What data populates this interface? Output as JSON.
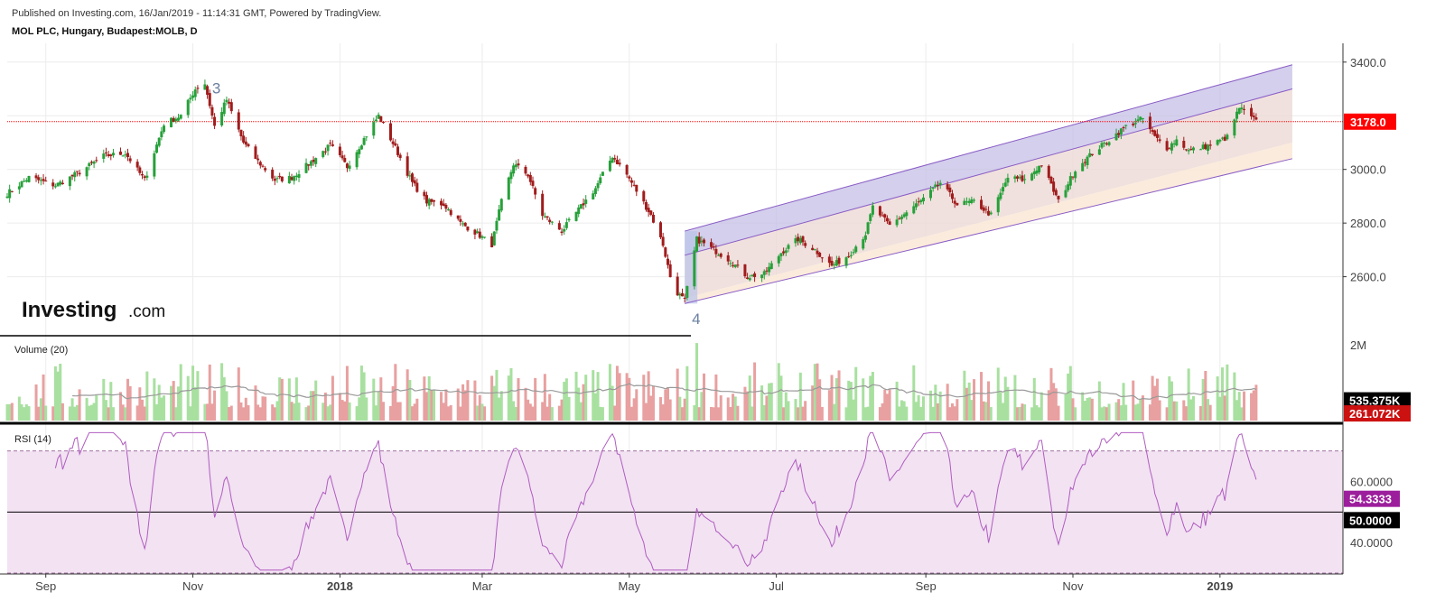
{
  "header": {
    "published": "Published on Investing.com, 16/Jan/2019 - 11:14:31 GMT, Powered by TradingView.",
    "symbol": "MOL PLC, Hungary, Budapest:MOLB, D"
  },
  "logo": {
    "main": "Investing",
    "suffix": ".com"
  },
  "colors": {
    "up": "#27a03a",
    "down": "#a01c1c",
    "vol_up": "#a8e0a0",
    "vol_down": "#e8a0a0",
    "rsi": "#b05cc0",
    "last_price": "#ff0000",
    "channel_upper_fill": "#c4bfe6",
    "channel_mid_fill": "#ecd9d6",
    "channel_lower_fill": "#fbe9d8",
    "rsi_band_fill": "#f2e2f2",
    "rsi_value_bg": "#9c1e9c"
  },
  "chart_data": {
    "type": "candlestick",
    "price_axis": {
      "ticks": [
        "3400.0",
        "3000.0",
        "2800.0",
        "2600.0"
      ],
      "range": [
        2380,
        3470
      ]
    },
    "last_price_label": "3178.0",
    "last_price": 3178.0,
    "wave_labels": [
      {
        "text": "3",
        "date": "2017-11-06",
        "price": 3330
      },
      {
        "text": "4",
        "date": "2018-05-24",
        "price": 2470
      }
    ],
    "x_axis": {
      "labels": [
        {
          "text": "Sep",
          "date": "2017-09-01",
          "bold": false
        },
        {
          "text": "Nov",
          "date": "2017-11-01",
          "bold": false
        },
        {
          "text": "2018",
          "date": "2018-01-01",
          "bold": true
        },
        {
          "text": "Mar",
          "date": "2018-03-01",
          "bold": false
        },
        {
          "text": "May",
          "date": "2018-05-01",
          "bold": false
        },
        {
          "text": "Jul",
          "date": "2018-07-01",
          "bold": false
        },
        {
          "text": "Sep",
          "date": "2018-09-01",
          "bold": false
        },
        {
          "text": "Nov",
          "date": "2018-11-01",
          "bold": false
        },
        {
          "text": "2019",
          "date": "2019-01-01",
          "bold": true
        }
      ]
    },
    "price_close": [
      [
        "2017-08-16",
        2910
      ],
      [
        "2017-08-25",
        2970
      ],
      [
        "2017-09-05",
        2940
      ],
      [
        "2017-09-15",
        2990
      ],
      [
        "2017-09-25",
        3050
      ],
      [
        "2017-10-04",
        3060
      ],
      [
        "2017-10-12",
        2960
      ],
      [
        "2017-10-20",
        3170
      ],
      [
        "2017-10-27",
        3200
      ],
      [
        "2017-11-02",
        3300
      ],
      [
        "2017-11-06",
        3320
      ],
      [
        "2017-11-10",
        3160
      ],
      [
        "2017-11-15",
        3260
      ],
      [
        "2017-11-22",
        3100
      ],
      [
        "2017-11-28",
        3030
      ],
      [
        "2017-12-05",
        2960
      ],
      [
        "2017-12-12",
        2970
      ],
      [
        "2017-12-19",
        3020
      ],
      [
        "2017-12-28",
        3090
      ],
      [
        "2018-01-04",
        3010
      ],
      [
        "2018-01-10",
        3100
      ],
      [
        "2018-01-17",
        3200
      ],
      [
        "2018-01-24",
        3080
      ],
      [
        "2018-01-31",
        2950
      ],
      [
        "2018-02-06",
        2880
      ],
      [
        "2018-02-13",
        2870
      ],
      [
        "2018-02-20",
        2800
      ],
      [
        "2018-02-27",
        2760
      ],
      [
        "2018-03-05",
        2720
      ],
      [
        "2018-03-09",
        2880
      ],
      [
        "2018-03-14",
        3020
      ],
      [
        "2018-03-20",
        2980
      ],
      [
        "2018-03-26",
        2830
      ],
      [
        "2018-04-03",
        2770
      ],
      [
        "2018-04-10",
        2850
      ],
      [
        "2018-04-17",
        2930
      ],
      [
        "2018-04-24",
        3050
      ],
      [
        "2018-04-30",
        2980
      ],
      [
        "2018-05-04",
        2920
      ],
      [
        "2018-05-10",
        2830
      ],
      [
        "2018-05-15",
        2720
      ],
      [
        "2018-05-19",
        2560
      ],
      [
        "2018-05-24",
        2510
      ],
      [
        "2018-05-29",
        2740
      ],
      [
        "2018-06-05",
        2700
      ],
      [
        "2018-06-12",
        2660
      ],
      [
        "2018-06-19",
        2600
      ],
      [
        "2018-06-26",
        2610
      ],
      [
        "2018-07-03",
        2690
      ],
      [
        "2018-07-10",
        2740
      ],
      [
        "2018-07-17",
        2700
      ],
      [
        "2018-07-24",
        2640
      ],
      [
        "2018-07-31",
        2680
      ],
      [
        "2018-08-07",
        2760
      ],
      [
        "2018-08-10",
        2860
      ],
      [
        "2018-08-17",
        2790
      ],
      [
        "2018-08-24",
        2840
      ],
      [
        "2018-08-31",
        2890
      ],
      [
        "2018-09-07",
        2950
      ],
      [
        "2018-09-14",
        2870
      ],
      [
        "2018-09-21",
        2880
      ],
      [
        "2018-09-28",
        2830
      ],
      [
        "2018-10-05",
        2970
      ],
      [
        "2018-10-12",
        2960
      ],
      [
        "2018-10-19",
        3020
      ],
      [
        "2018-10-26",
        2880
      ],
      [
        "2018-11-02",
        3000
      ],
      [
        "2018-11-09",
        3060
      ],
      [
        "2018-11-16",
        3110
      ],
      [
        "2018-11-23",
        3160
      ],
      [
        "2018-11-30",
        3190
      ],
      [
        "2018-12-05",
        3120
      ],
      [
        "2018-12-10",
        3080
      ],
      [
        "2018-12-14",
        3110
      ],
      [
        "2018-12-19",
        3070
      ],
      [
        "2018-12-28",
        3090
      ],
      [
        "2019-01-04",
        3120
      ],
      [
        "2019-01-09",
        3230
      ],
      [
        "2019-01-16",
        3178
      ]
    ],
    "channel": {
      "upper": {
        "start": [
          "2018-05-24",
          2770
        ],
        "end": [
          "2019-01-31",
          3390
        ]
      },
      "mid": {
        "start": [
          "2018-05-24",
          2680
        ],
        "end": [
          "2019-01-31",
          3300
        ]
      },
      "lower": {
        "start": [
          "2018-05-24",
          2500
        ],
        "end": [
          "2019-01-31",
          3040
        ]
      }
    },
    "volume": {
      "panel_label": "Volume (20)",
      "axis_tick": "2M",
      "range": [
        0,
        2.1
      ],
      "sma_label": "535.375K",
      "last_label": "261.072K",
      "last_value_millions": 0.261,
      "sma_value_millions": 0.535
    },
    "rsi": {
      "panel_label": "RSI (14)",
      "period": 14,
      "range": [
        30,
        77
      ],
      "band": [
        70,
        30
      ],
      "ticks": [
        "60.0000",
        "40.0000"
      ],
      "value_label": "54.3333",
      "midline_label": "50.0000",
      "last_value": 54.3333
    },
    "xlabel": "",
    "ylabel": ""
  }
}
